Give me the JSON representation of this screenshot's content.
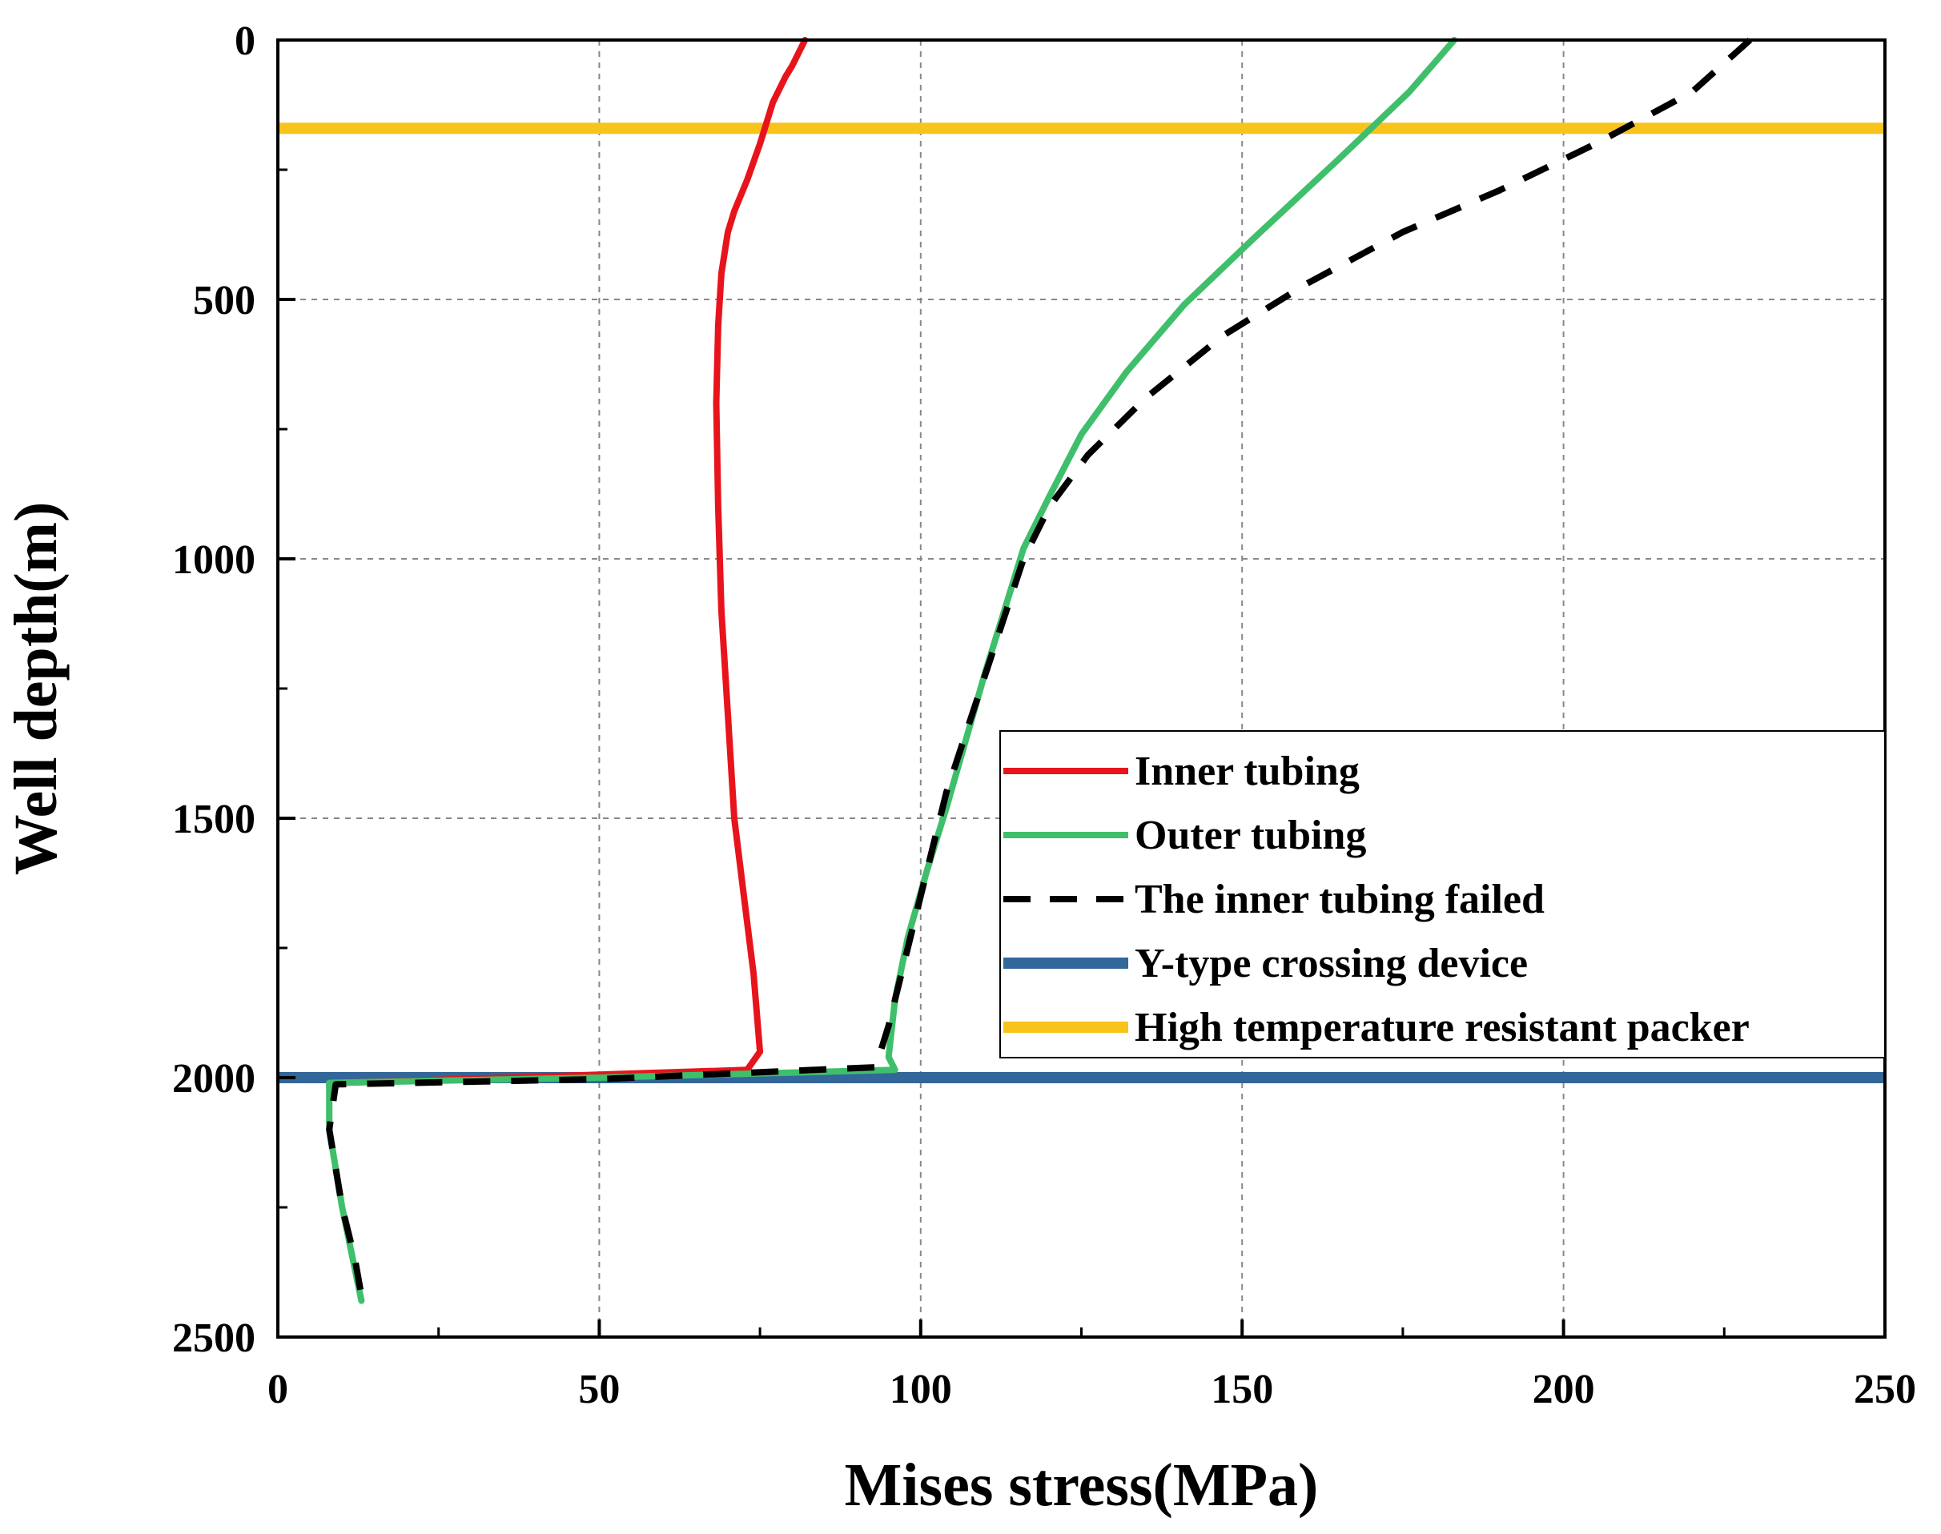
{
  "chart_data": {
    "type": "line",
    "title": "",
    "xlabel": "Mises stress(MPa)",
    "ylabel": "Well depth(m)",
    "xlim": [
      0,
      250
    ],
    "ylim": [
      2500,
      0
    ],
    "x_ticks": [
      0,
      50,
      100,
      150,
      200,
      250
    ],
    "y_ticks": [
      0,
      500,
      1000,
      1500,
      2000,
      2500
    ],
    "grid": true,
    "legend_position": "right",
    "series": [
      {
        "name": "Inner tubing",
        "color": "#e8141c",
        "style": "solid",
        "points": [
          [
            82,
            0
          ],
          [
            80,
            50
          ],
          [
            79,
            70
          ],
          [
            77,
            120
          ],
          [
            75,
            200
          ],
          [
            73,
            270
          ],
          [
            71,
            330
          ],
          [
            70,
            370
          ],
          [
            69,
            450
          ],
          [
            68.5,
            550
          ],
          [
            68.2,
            700
          ],
          [
            68.5,
            900
          ],
          [
            69,
            1100
          ],
          [
            70,
            1300
          ],
          [
            71,
            1500
          ],
          [
            72.5,
            1650
          ],
          [
            74,
            1800
          ],
          [
            75,
            1950
          ],
          [
            73,
            1985
          ],
          [
            10,
            2010
          ],
          [
            8,
            2015
          ]
        ]
      },
      {
        "name": "Outer tubing",
        "color": "#3fbf6b",
        "style": "solid",
        "points": [
          [
            183,
            0
          ],
          [
            176,
            100
          ],
          [
            165,
            230
          ],
          [
            152,
            380
          ],
          [
            141,
            510
          ],
          [
            132,
            640
          ],
          [
            125,
            760
          ],
          [
            120,
            880
          ],
          [
            116,
            980
          ],
          [
            113,
            1100
          ],
          [
            110,
            1220
          ],
          [
            107,
            1350
          ],
          [
            104,
            1480
          ],
          [
            101,
            1600
          ],
          [
            98,
            1730
          ],
          [
            96,
            1850
          ],
          [
            95,
            1960
          ],
          [
            96,
            1985
          ],
          [
            50,
            2000
          ],
          [
            8,
            2010
          ],
          [
            8,
            2100
          ],
          [
            10,
            2250
          ],
          [
            12,
            2370
          ],
          [
            13,
            2430
          ]
        ]
      },
      {
        "name": "The inner tubing failed",
        "color": "#000000",
        "style": "dashed",
        "points": [
          [
            229,
            0
          ],
          [
            220,
            100
          ],
          [
            205,
            200
          ],
          [
            190,
            290
          ],
          [
            175,
            370
          ],
          [
            160,
            470
          ],
          [
            147,
            570
          ],
          [
            135,
            690
          ],
          [
            126,
            800
          ],
          [
            120,
            900
          ],
          [
            116,
            1000
          ],
          [
            112,
            1150
          ],
          [
            108,
            1300
          ],
          [
            104,
            1450
          ],
          [
            101,
            1600
          ],
          [
            98,
            1750
          ],
          [
            95,
            1900
          ],
          [
            93,
            1980
          ],
          [
            50,
            2003
          ],
          [
            9,
            2013
          ],
          [
            8,
            2100
          ],
          [
            10,
            2250
          ],
          [
            12,
            2350
          ],
          [
            13,
            2420
          ]
        ]
      },
      {
        "name": "Y-type crossing device",
        "color": "#336699",
        "style": "solid",
        "points": [
          [
            0,
            2000
          ],
          [
            250,
            2000
          ]
        ]
      },
      {
        "name": "High temperature resistant packer",
        "color": "#f8c31b",
        "style": "solid",
        "points": [
          [
            0,
            170
          ],
          [
            250,
            170
          ]
        ]
      }
    ]
  }
}
